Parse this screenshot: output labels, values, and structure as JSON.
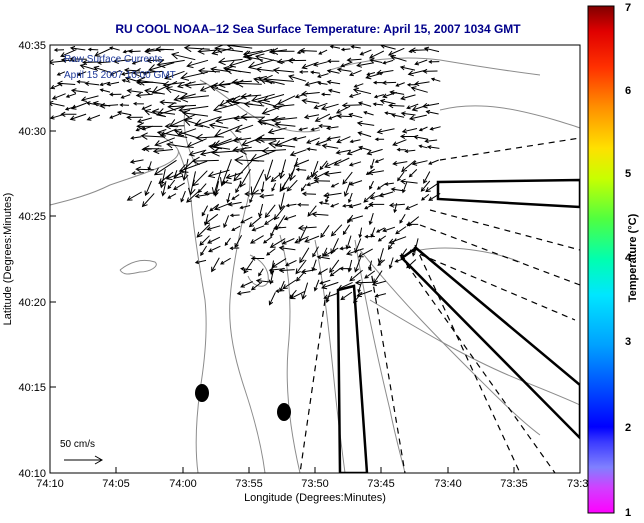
{
  "title": "RU COOL  NOAA–12  Sea Surface Temperature:  April 15, 2007 1034 GMT",
  "legend": {
    "line1": "Raw Surface Currents",
    "line2": "April 15 2007 10:00 GMT"
  },
  "axes": {
    "xlabel": "Longitude (Degrees:Minutes)",
    "ylabel": "Latitude (Degrees:Minutes)",
    "xticks": [
      "74:10",
      "74:05",
      "74:00",
      "73:55",
      "73:50",
      "73:45",
      "73:40",
      "73:35",
      "73:3"
    ],
    "yticks": [
      "40:35",
      "40:30",
      "40:25",
      "40:20",
      "40:15",
      "40:10"
    ]
  },
  "scale": {
    "label": "50 cm/s"
  },
  "colorbar": {
    "label": "Temperature (°C)",
    "ticks": [
      "7",
      "6",
      "5",
      "4",
      "3",
      "2",
      "1"
    ],
    "min": 1,
    "max": 7
  },
  "colors": {
    "title": "#00008b",
    "legend_text": "#1f3a9a",
    "contour": "#8c8c8c",
    "vectors": "#000000"
  }
}
